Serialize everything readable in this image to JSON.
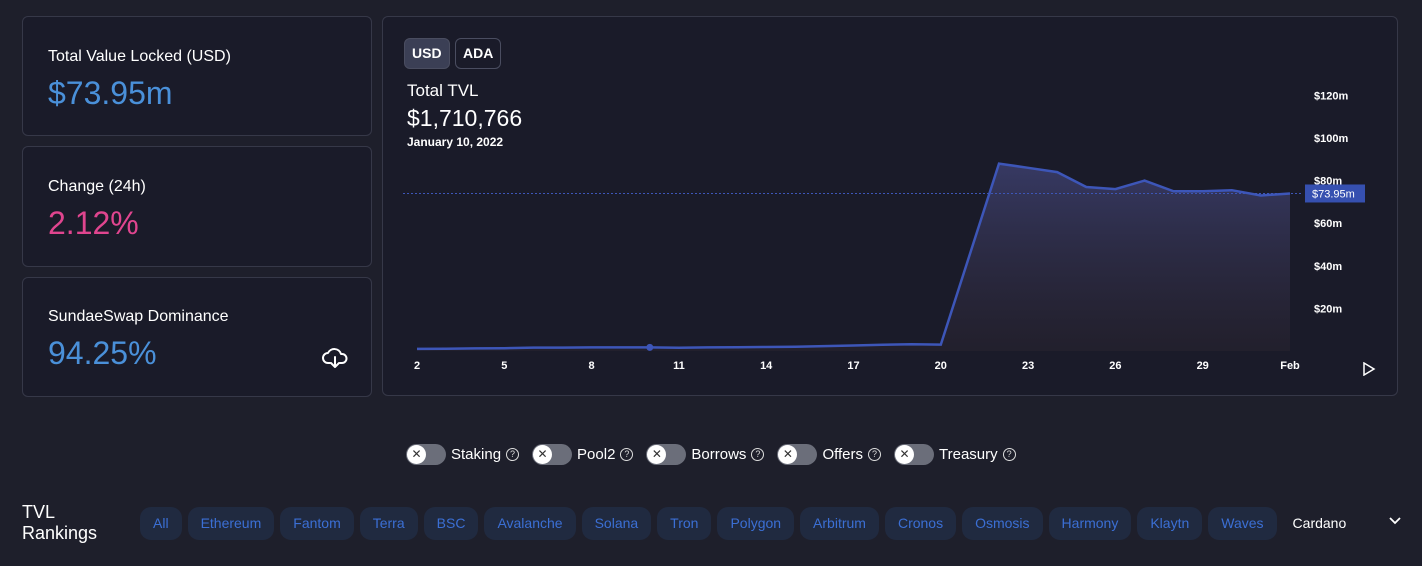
{
  "stats": {
    "tvl": {
      "label": "Total Value Locked (USD)",
      "value": "$73.95m",
      "color": "#4a90d9"
    },
    "change": {
      "label": "Change (24h)",
      "value": "2.12%",
      "color": "#e0458f"
    },
    "dominance": {
      "label": "SundaeSwap Dominance",
      "value": "94.25%",
      "color": "#4a90d9",
      "icon": "download-cloud-icon"
    }
  },
  "chart_panel": {
    "currency_buttons": [
      "USD",
      "ADA"
    ],
    "active_currency": "USD",
    "title": "Total TVL",
    "value": "$1,710,766",
    "date": "January 10, 2022",
    "current_label": "$73.95m"
  },
  "chart_data": {
    "type": "area",
    "title": "Total TVL",
    "x": [
      2,
      3,
      4,
      5,
      6,
      7,
      8,
      9,
      10,
      11,
      12,
      13,
      14,
      15,
      16,
      17,
      18,
      19,
      20,
      22,
      23,
      24,
      25,
      26,
      27,
      28,
      29,
      30,
      31,
      32
    ],
    "values": [
      1.0,
      1.1,
      1.2,
      1.3,
      1.6,
      1.6,
      1.7,
      1.7,
      1.71,
      1.5,
      1.7,
      1.8,
      1.9,
      2.0,
      2.3,
      2.6,
      2.9,
      3.2,
      3.0,
      88,
      86,
      84,
      77,
      76,
      80,
      75,
      75,
      75.5,
      73,
      73.95
    ],
    "x_ticks": [
      {
        "x": 2,
        "label": "2"
      },
      {
        "x": 5,
        "label": "5"
      },
      {
        "x": 8,
        "label": "8"
      },
      {
        "x": 11,
        "label": "11"
      },
      {
        "x": 14,
        "label": "14"
      },
      {
        "x": 17,
        "label": "17"
      },
      {
        "x": 20,
        "label": "20"
      },
      {
        "x": 23,
        "label": "23"
      },
      {
        "x": 26,
        "label": "26"
      },
      {
        "x": 29,
        "label": "29"
      },
      {
        "x": 32,
        "label": "Feb"
      }
    ],
    "y_ticks": [
      {
        "v": 20,
        "label": "$20m"
      },
      {
        "v": 40,
        "label": "$40m"
      },
      {
        "v": 60,
        "label": "$60m"
      },
      {
        "v": 80,
        "label": "$80m"
      },
      {
        "v": 100,
        "label": "$100m"
      },
      {
        "v": 120,
        "label": "$120m"
      }
    ],
    "ylim": [
      0,
      120
    ],
    "highlight_x": 10,
    "current_value": 73.95,
    "line_color": "#3d56b8"
  },
  "toggles": [
    {
      "label": "Staking",
      "on": false
    },
    {
      "label": "Pool2",
      "on": false
    },
    {
      "label": "Borrows",
      "on": false
    },
    {
      "label": "Offers",
      "on": false
    },
    {
      "label": "Treasury",
      "on": false
    }
  ],
  "rankings": {
    "title": "TVL Rankings",
    "chips": [
      "All",
      "Ethereum",
      "Fantom",
      "Terra",
      "BSC",
      "Avalanche",
      "Solana",
      "Tron",
      "Polygon",
      "Arbitrum",
      "Cronos",
      "Osmosis",
      "Harmony",
      "Klaytn",
      "Waves"
    ],
    "selected": "Cardano"
  }
}
